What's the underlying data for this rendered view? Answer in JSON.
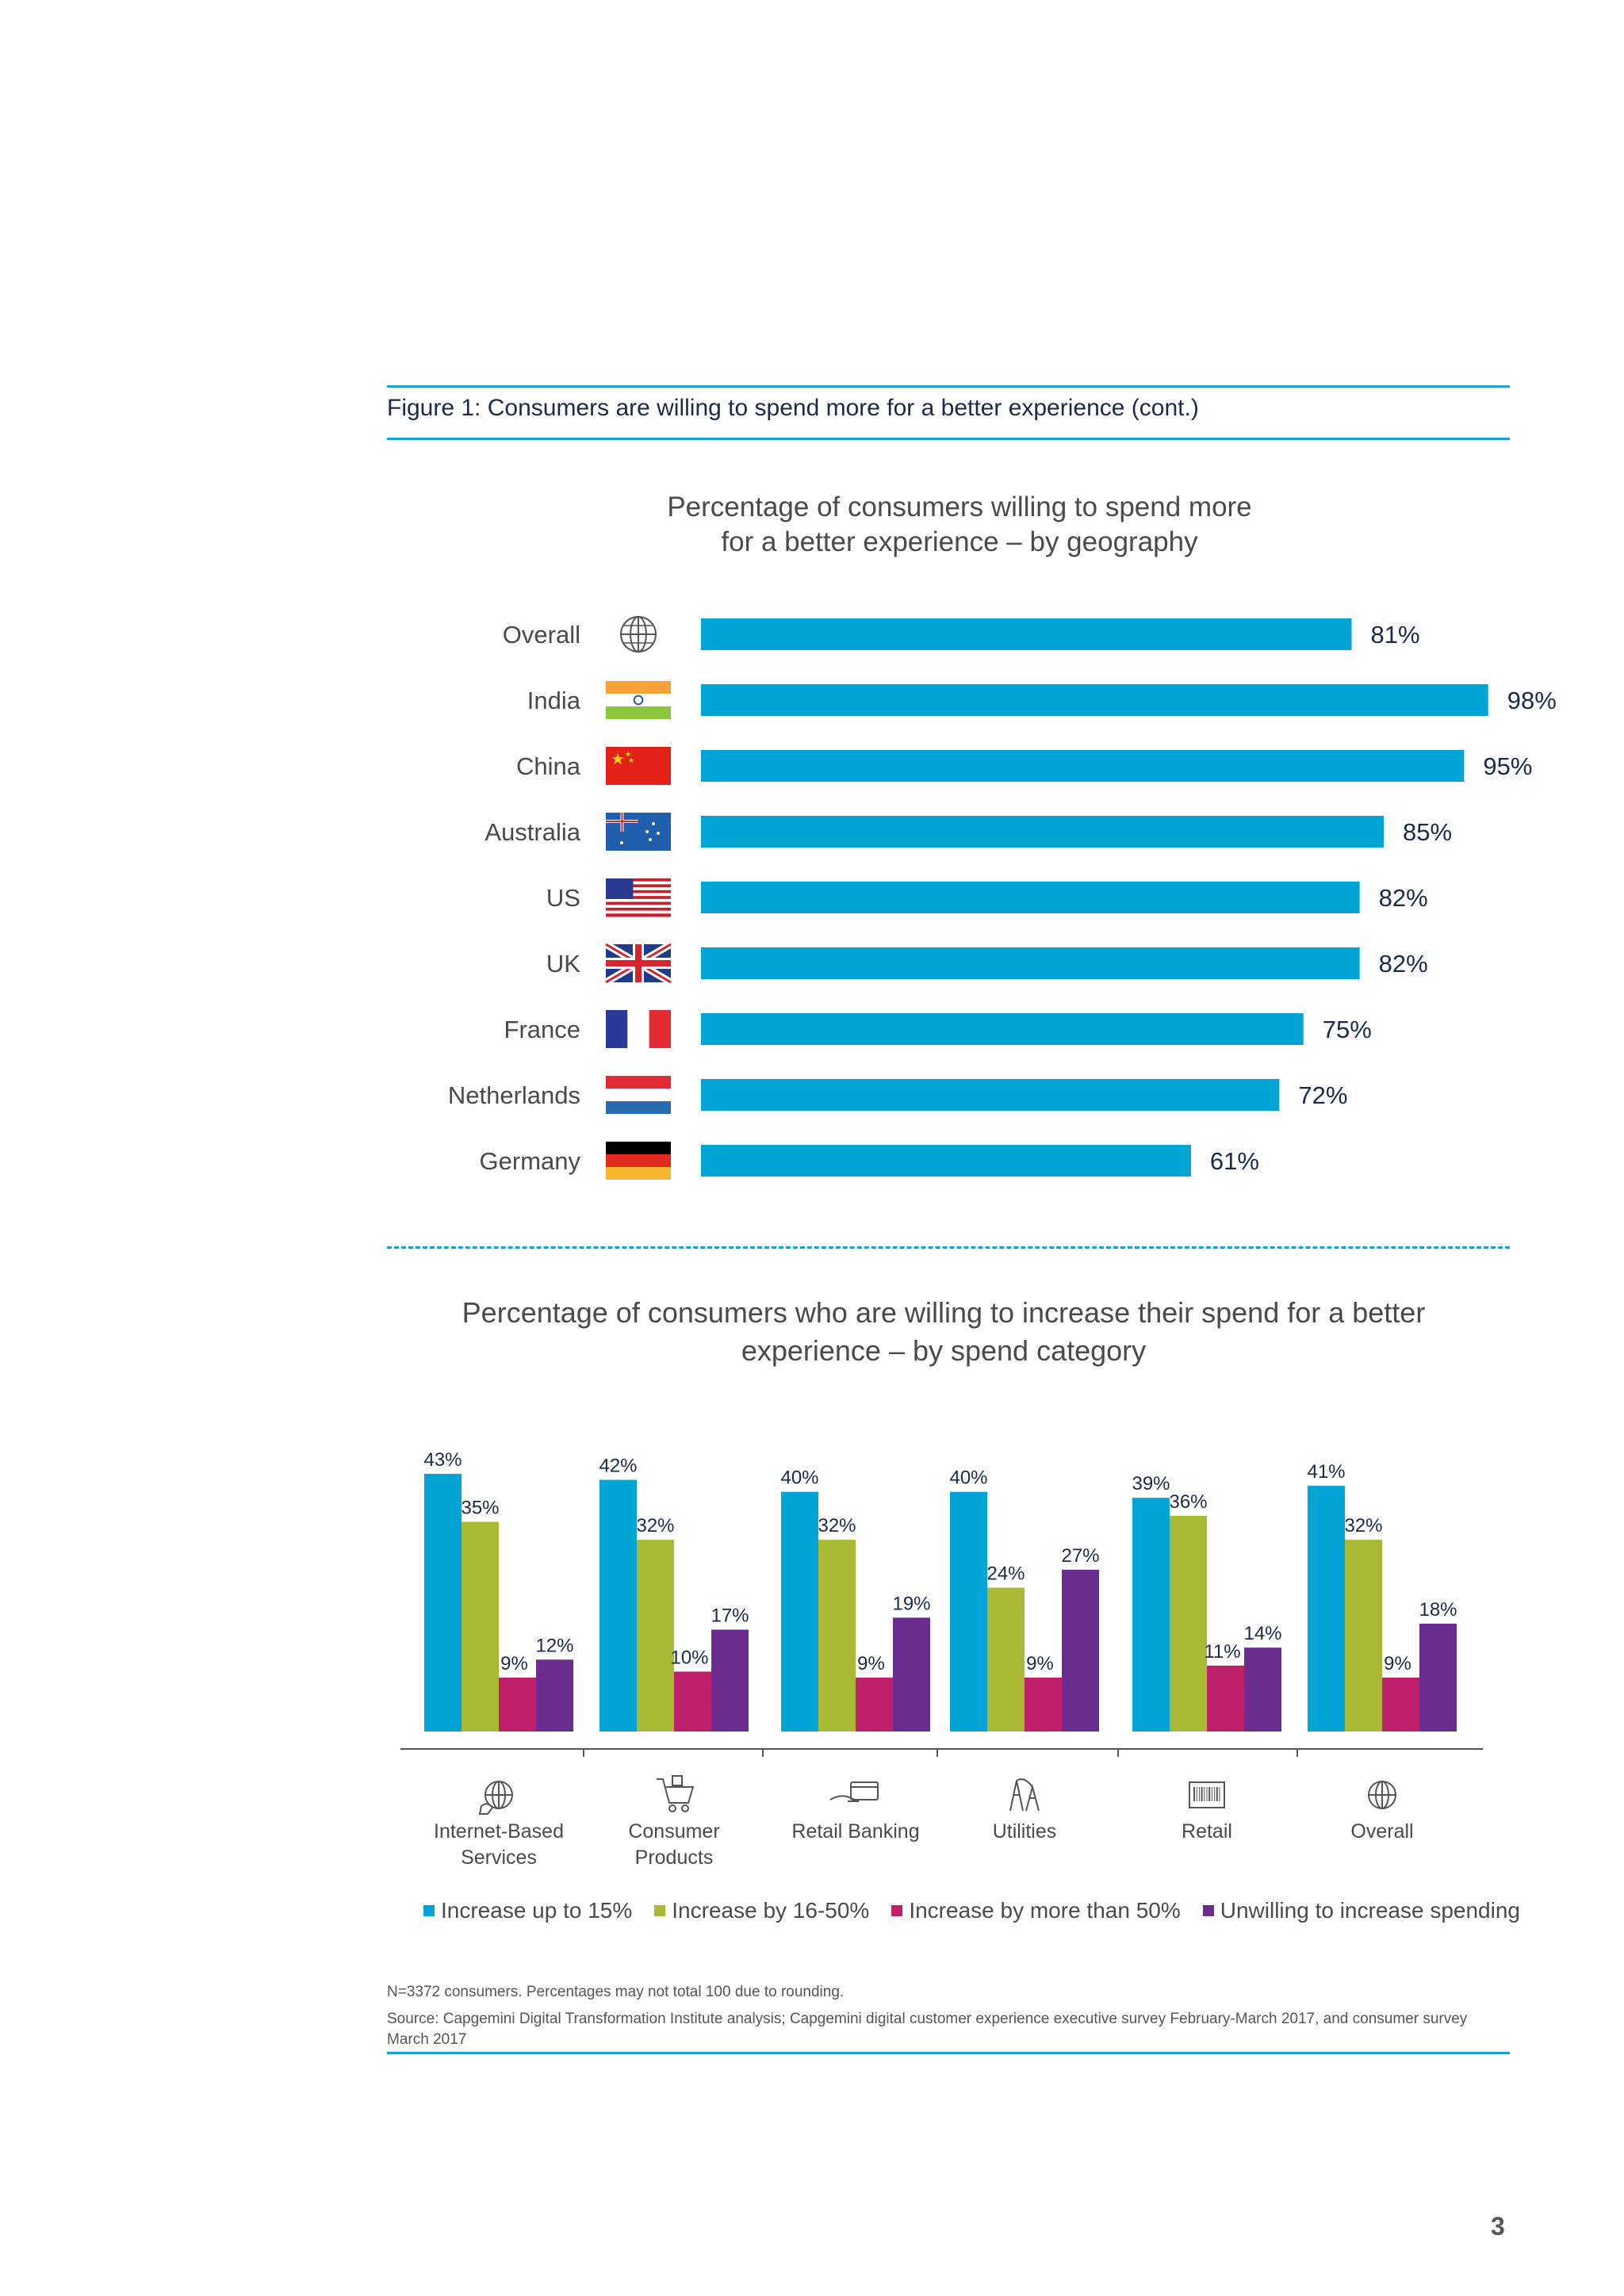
{
  "figure": {
    "title": "Figure 1: Consumers are willing to spend more for a better experience (cont.)"
  },
  "colors": {
    "accent": "#1aa0d8",
    "bar_geo": "#00a5d5",
    "series": [
      "#00a5d5",
      "#a9b935",
      "#c0206b",
      "#6a2d8f"
    ]
  },
  "chart_data": [
    {
      "type": "bar",
      "orientation": "horizontal",
      "title_line1": "Percentage of consumers willing to spend more",
      "title_line2": "for a better experience – by geography",
      "categories": [
        "Overall",
        "India",
        "China",
        "Australia",
        "US",
        "UK",
        "France",
        "Netherlands",
        "Germany"
      ],
      "icons": [
        "globe-icon",
        "india-flag-icon",
        "china-flag-icon",
        "australia-flag-icon",
        "us-flag-icon",
        "uk-flag-icon",
        "france-flag-icon",
        "netherlands-flag-icon",
        "germany-flag-icon"
      ],
      "values": [
        81,
        98,
        95,
        85,
        82,
        82,
        75,
        72,
        61
      ],
      "value_labels": [
        "81%",
        "98%",
        "95%",
        "85%",
        "82%",
        "82%",
        "75%",
        "72%",
        "61%"
      ],
      "xlim": [
        0,
        100
      ]
    },
    {
      "type": "bar",
      "orientation": "vertical",
      "title_line1": "Percentage of consumers who are willing to increase their spend for a better",
      "title_line2": "experience – by spend category",
      "categories": [
        {
          "line1": "Internet-Based",
          "line2": "Services",
          "icon": "globe-hand-icon"
        },
        {
          "line1": "Consumer",
          "line2": "Products",
          "icon": "shopping-cart-icon"
        },
        {
          "line1": "Retail Banking",
          "line2": "",
          "icon": "card-hand-icon"
        },
        {
          "line1": "Utilities",
          "line2": "",
          "icon": "utility-pylon-icon"
        },
        {
          "line1": "Retail",
          "line2": "",
          "icon": "barcode-icon"
        },
        {
          "line1": "Overall",
          "line2": "",
          "icon": "globe-icon"
        }
      ],
      "series": [
        {
          "name": "Increase up to 15%",
          "values": [
            43,
            42,
            40,
            40,
            39,
            41
          ]
        },
        {
          "name": "Increase by 16-50%",
          "values": [
            35,
            32,
            32,
            24,
            36,
            32
          ]
        },
        {
          "name": "Increase by more than 50%",
          "values": [
            9,
            10,
            9,
            9,
            11,
            9
          ]
        },
        {
          "name": "Unwilling to increase spending",
          "values": [
            12,
            17,
            19,
            27,
            14,
            18
          ]
        }
      ],
      "ylim": [
        0,
        45
      ]
    }
  ],
  "notes": {
    "n": "N=3372 consumers. Percentages may not total 100 due to rounding.",
    "source": "Source: Capgemini Digital Transformation Institute analysis; Capgemini digital customer experience executive survey February-March 2017, and consumer survey March 2017"
  },
  "page_number": "3"
}
